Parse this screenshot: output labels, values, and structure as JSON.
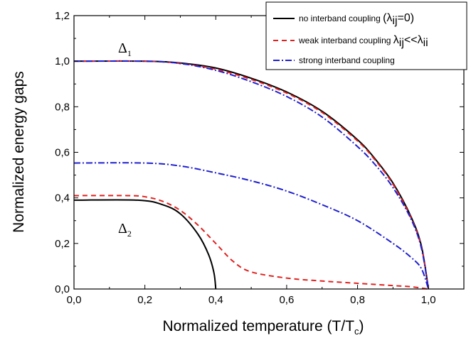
{
  "chart_data": {
    "type": "line",
    "xlabel": "Normalized temperature (T/T",
    "xlabel_sub": "c",
    "xlabel_end": ")",
    "ylabel": "Normalized energy gaps",
    "xlim": [
      0.0,
      1.1
    ],
    "ylim": [
      0.0,
      1.2
    ],
    "x_ticks": [
      "0,0",
      "0,2",
      "0,4",
      "0,6",
      "0,8",
      "1,0"
    ],
    "y_ticks": [
      "0,0",
      "0,2",
      "0,4",
      "0,6",
      "0,8",
      "1,0",
      "1,2"
    ],
    "grid": false,
    "legend_position": "top-right",
    "annotations": [
      {
        "text": "Δ",
        "sub": "1"
      },
      {
        "text": "Δ",
        "sub": "2"
      }
    ],
    "series": [
      {
        "name": "no interband coupling (λij=0)",
        "legend_main": "no interband coupling ",
        "legend_math": "(λ",
        "legend_sub": "ij",
        "legend_end": "=0)",
        "color": "#000000",
        "dash": "solid",
        "curves": [
          {
            "x": [
              0,
              0.2,
              0.3,
              0.4,
              0.5,
              0.6,
              0.7,
              0.8,
              0.85,
              0.9,
              0.95,
              0.98,
              1.0
            ],
            "y": [
              1.0,
              1.0,
              0.992,
              0.97,
              0.925,
              0.865,
              0.78,
              0.655,
              0.57,
              0.465,
              0.32,
              0.19,
              0.0
            ]
          },
          {
            "x": [
              0,
              0.18,
              0.25,
              0.3,
              0.35,
              0.38,
              0.395,
              0.4
            ],
            "y": [
              0.39,
              0.39,
              0.37,
              0.33,
              0.24,
              0.15,
              0.07,
              0.0
            ]
          }
        ]
      },
      {
        "name": "weak interband coupling λij<<λii",
        "legend_main": "weak interband coupling ",
        "legend_math": "λ",
        "legend_sub": "ij",
        "legend_mid": "<<λ",
        "legend_sub2": "ii",
        "color": "#e0211f",
        "dash": "dashed",
        "curves": [
          {
            "x": [
              0,
              0.2,
              0.3,
              0.4,
              0.5,
              0.6,
              0.7,
              0.8,
              0.85,
              0.9,
              0.95,
              0.98,
              1.0
            ],
            "y": [
              1.0,
              1.0,
              0.99,
              0.965,
              0.92,
              0.86,
              0.775,
              0.65,
              0.565,
              0.46,
              0.315,
              0.185,
              0.0
            ]
          },
          {
            "x": [
              0,
              0.15,
              0.2,
              0.25,
              0.3,
              0.35,
              0.4,
              0.45,
              0.5,
              0.6,
              0.7,
              0.8,
              0.9,
              0.95,
              1.0
            ],
            "y": [
              0.41,
              0.41,
              0.405,
              0.385,
              0.345,
              0.28,
              0.2,
              0.12,
              0.075,
              0.048,
              0.035,
              0.025,
              0.015,
              0.01,
              0.0
            ]
          }
        ]
      },
      {
        "name": "strong interband coupling",
        "legend_main": "strong interband coupling",
        "color": "#1f1fd0",
        "dash": "dashdot",
        "curves": [
          {
            "x": [
              0,
              0.2,
              0.3,
              0.4,
              0.5,
              0.6,
              0.7,
              0.8,
              0.85,
              0.9,
              0.95,
              0.98,
              1.0
            ],
            "y": [
              1.0,
              1.0,
              0.99,
              0.96,
              0.91,
              0.845,
              0.755,
              0.625,
              0.545,
              0.445,
              0.31,
              0.18,
              0.0
            ]
          },
          {
            "x": [
              0,
              0.2,
              0.3,
              0.4,
              0.5,
              0.6,
              0.7,
              0.8,
              0.9,
              0.95,
              0.98,
              1.0
            ],
            "y": [
              0.553,
              0.553,
              0.54,
              0.51,
              0.475,
              0.43,
              0.37,
              0.3,
              0.2,
              0.14,
              0.09,
              0.0
            ]
          }
        ]
      }
    ]
  }
}
